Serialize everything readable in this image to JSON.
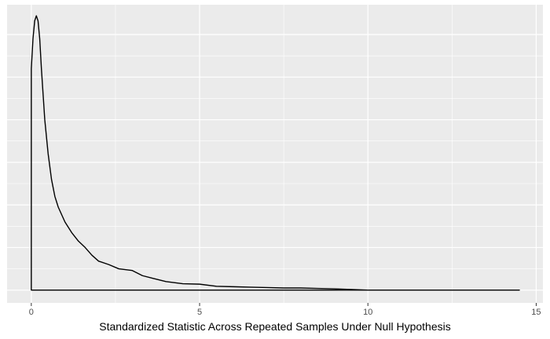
{
  "chart_data": {
    "type": "area",
    "title": "",
    "xlabel": "Standardized Statistic Across Repeated Samples Under Null Hypothesis",
    "ylabel": "",
    "xlim": [
      -0.72,
      15.2
    ],
    "ylim": [
      -0.03,
      0.67
    ],
    "x_ticks": [
      0,
      5,
      10,
      15
    ],
    "x_tick_labels": [
      "0",
      "5",
      "10",
      "15"
    ],
    "y_ticks": [
      0,
      0.1,
      0.2,
      0.3,
      0.4,
      0.5,
      0.6
    ],
    "y_tick_labels": [],
    "grid": true,
    "panel_background": "#ebebeb",
    "grid_color": "#ffffff",
    "line_color": "#000000",
    "series": [
      {
        "x": [
          0.0,
          0.05,
          0.1,
          0.15,
          0.2,
          0.25,
          0.3,
          0.4,
          0.5,
          0.6,
          0.7,
          0.8,
          1.0,
          1.2,
          1.4,
          1.6,
          1.8,
          2.0,
          2.3,
          2.6,
          3.0,
          3.3,
          3.6,
          4.0,
          4.5,
          5.0,
          5.5,
          6.0,
          6.5,
          7.0,
          7.5,
          8.0,
          8.5,
          9.0,
          9.3,
          10.0,
          11.0,
          12.0,
          13.0,
          14.0,
          14.5
        ],
        "y": [
          0.52,
          0.59,
          0.632,
          0.644,
          0.632,
          0.59,
          0.52,
          0.4,
          0.32,
          0.26,
          0.22,
          0.195,
          0.16,
          0.135,
          0.115,
          0.1,
          0.082,
          0.068,
          0.06,
          0.05,
          0.046,
          0.034,
          0.028,
          0.02,
          0.015,
          0.014,
          0.009,
          0.008,
          0.007,
          0.006,
          0.005,
          0.005,
          0.004,
          0.003,
          0.002,
          0.0,
          0.0,
          0.0,
          0.0,
          0.0,
          0.0
        ]
      }
    ]
  }
}
